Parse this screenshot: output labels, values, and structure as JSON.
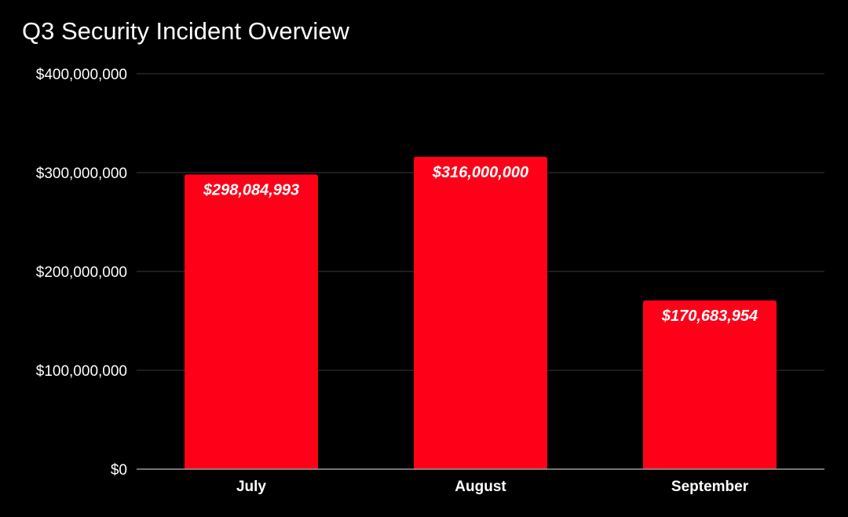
{
  "chart_data": {
    "type": "bar",
    "title": "Q3 Security Incident Overview",
    "categories": [
      "July",
      "August",
      "September"
    ],
    "values": [
      298084993,
      316000000,
      170683954
    ],
    "data_labels": [
      "$298,084,993",
      "$316,000,000",
      "$170,683,954"
    ],
    "yticks": [
      0,
      100000000,
      200000000,
      300000000,
      400000000
    ],
    "ytick_labels": [
      "$0",
      "$100,000,000",
      "$200,000,000",
      "$300,000,000",
      "$400,000,000"
    ],
    "ylim": [
      0,
      400000000
    ],
    "xlabel": "",
    "ylabel": "",
    "grid": true,
    "legend": "none"
  },
  "colors": {
    "background": "#000000",
    "bar": "#ff0019",
    "gridline": "#3a3a3a",
    "baseline": "#9a9a9a",
    "text": "#ffffff"
  }
}
